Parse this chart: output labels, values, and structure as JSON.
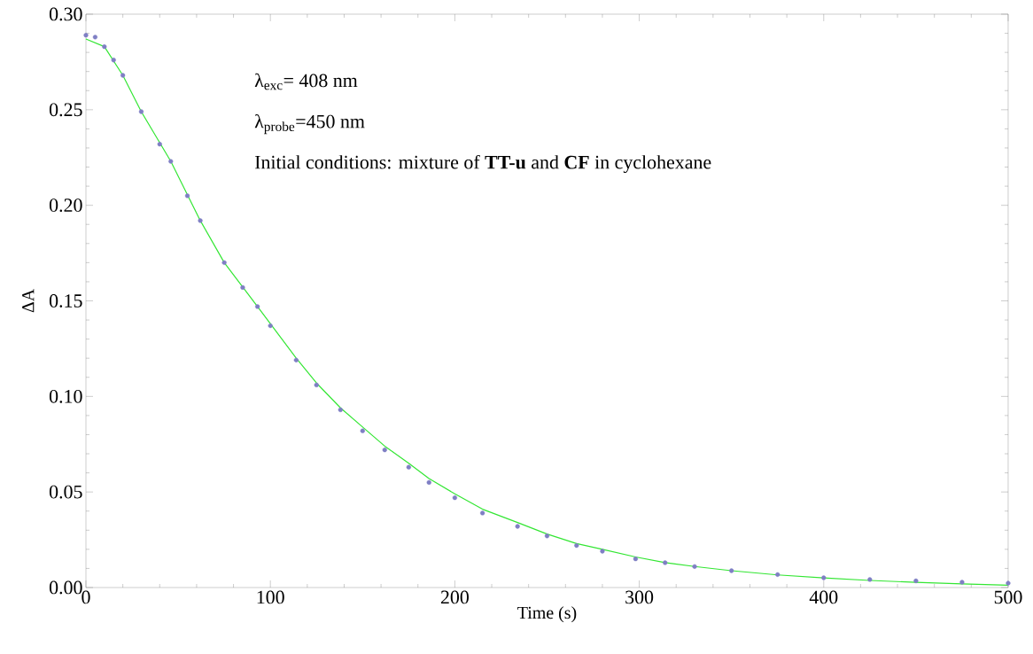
{
  "chart_data": {
    "type": "scatter",
    "xlabel": "Time (s)",
    "ylabel": "ΔA",
    "annotations": [
      "λ$_{exc}$= 408 nm",
      "λ$_{probe}$=450 nm",
      "Initial conditions: mixture of **TT-u** and **CF** in cyclohexane"
    ],
    "xlim": [
      0,
      500
    ],
    "ylim": [
      0,
      0.3
    ],
    "xticks": [
      0,
      100,
      200,
      300,
      400,
      500
    ],
    "yticks": [
      {
        "value": 0,
        "label": "0.00"
      },
      {
        "value": 0.05,
        "label": "0.05"
      },
      {
        "value": 0.1,
        "label": "0.10"
      },
      {
        "value": 0.15,
        "label": "0.15"
      },
      {
        "value": 0.2,
        "label": "0.20"
      },
      {
        "value": 0.25,
        "label": "0.25"
      },
      {
        "value": 0.3,
        "label": "0.30"
      }
    ],
    "grid": false,
    "series": [
      {
        "marker": "circle",
        "color": "#7f7fc4",
        "x": [
          0,
          5,
          10,
          15,
          20,
          30,
          40,
          46,
          55,
          62,
          75,
          85,
          93,
          100,
          114,
          125,
          138,
          150,
          162,
          175,
          186,
          200,
          215,
          234,
          250,
          266,
          280,
          298,
          314,
          330,
          350,
          375,
          400,
          425,
          450,
          475,
          500
        ],
        "values": [
          0.289,
          0.288,
          0.283,
          0.276,
          0.268,
          0.249,
          0.232,
          0.223,
          0.205,
          0.192,
          0.17,
          0.157,
          0.147,
          0.137,
          0.119,
          0.106,
          0.093,
          0.082,
          0.072,
          0.063,
          0.055,
          0.047,
          0.039,
          0.032,
          0.027,
          0.022,
          0.019,
          0.015,
          0.013,
          0.011,
          0.0088,
          0.0068,
          0.0051,
          0.0042,
          0.0035,
          0.0028,
          0.0023
        ]
      },
      {
        "type": "line",
        "line_style": "solid",
        "color": "#33e633",
        "x": [
          0,
          10,
          20,
          30,
          46,
          62,
          75,
          93,
          100,
          114,
          125,
          138,
          150,
          162,
          175,
          186,
          200,
          215,
          234,
          250,
          266,
          280,
          298,
          314,
          330,
          350,
          375,
          400,
          425,
          450,
          475,
          500
        ],
        "values": [
          0.287,
          0.283,
          0.268,
          0.249,
          0.223,
          0.192,
          0.17,
          0.147,
          0.138,
          0.12,
          0.107,
          0.094,
          0.084,
          0.074,
          0.065,
          0.057,
          0.049,
          0.041,
          0.034,
          0.028,
          0.023,
          0.02,
          0.016,
          0.013,
          0.011,
          0.0088,
          0.0066,
          0.005,
          0.0037,
          0.0027,
          0.0019,
          0.0012
        ]
      }
    ]
  }
}
